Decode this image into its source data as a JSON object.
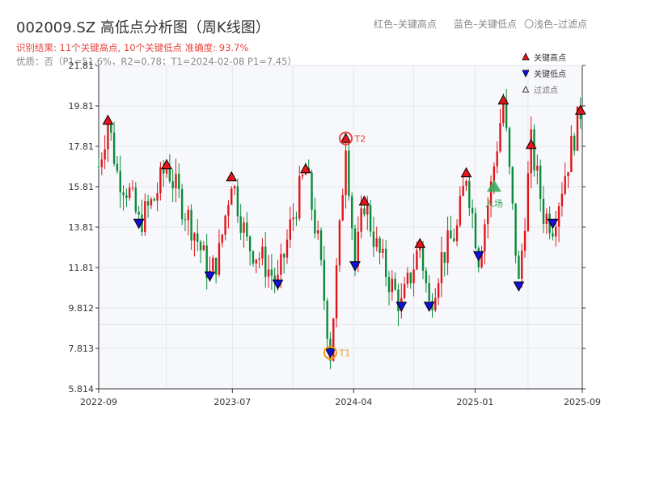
{
  "header": {
    "title": "002009.SZ 高低点分析图（周K线图）",
    "subtitle": "识别结果: 11个关键高点, 10个关键低点   准确度: 93.7%",
    "subtitle2": "优质：否（P1=51.6%，R2=0.78；T1=2024-02-08 P1=7.45）",
    "legend_top": [
      {
        "label": "红色–关键高点"
      },
      {
        "label": "蓝色–关键低点"
      },
      {
        "label": "〇浅色–过滤点"
      }
    ]
  },
  "colors": {
    "up": "#e0161b",
    "down": "#0a8a3a",
    "high_marker": "#e8161b",
    "low_marker": "#1010d8",
    "plot_bg": "#f7f8fb",
    "grid": "#e3e6ec",
    "axis": "#333333",
    "annotation_t1": "#f29418",
    "annotation_t2": "#e8453c",
    "entry": "#2daa57"
  },
  "chart_data": {
    "type": "candlestick",
    "x_axis": {
      "ticks": [
        {
          "label": "2022-09",
          "date": "2022-09-01"
        },
        {
          "label": "2023-07",
          "date": "2023-07-01"
        },
        {
          "label": "2024-04",
          "date": "2024-04-01"
        },
        {
          "label": "2025-01",
          "date": "2025-01-01"
        },
        {
          "label": "2025-09",
          "date": "2025-09-01"
        }
      ],
      "range": [
        "2022-09-01",
        "2025-09-01"
      ]
    },
    "y_axis": {
      "range": [
        5.814,
        21.81
      ],
      "ticks": [
        "5.814",
        "7.813",
        "9.812",
        "11.81",
        "13.81",
        "15.81",
        "17.81",
        "19.81",
        "21.81"
      ]
    },
    "price_path": [
      [
        "2022-09-01",
        16.8
      ],
      [
        "2022-09-22",
        19.1
      ],
      [
        "2022-10-13",
        16.5
      ],
      [
        "2022-11-10",
        15.5
      ],
      [
        "2022-12-01",
        14.0
      ],
      [
        "2023-01-05",
        15.2
      ],
      [
        "2023-02-02",
        16.9
      ],
      [
        "2023-03-02",
        15.3
      ],
      [
        "2023-04-06",
        13.6
      ],
      [
        "2023-05-11",
        11.4
      ],
      [
        "2023-06-01",
        12.5
      ],
      [
        "2023-06-29",
        16.3
      ],
      [
        "2023-08-03",
        13.0
      ],
      [
        "2023-09-07",
        12.2
      ],
      [
        "2023-10-12",
        11.0
      ],
      [
        "2023-11-09",
        13.8
      ],
      [
        "2023-12-14",
        16.7
      ],
      [
        "2024-01-11",
        13.0
      ],
      [
        "2024-02-08",
        7.6
      ],
      [
        "2024-02-29",
        13.5
      ],
      [
        "2024-03-14",
        18.2
      ],
      [
        "2024-04-04",
        11.9
      ],
      [
        "2024-04-25",
        15.1
      ],
      [
        "2024-05-23",
        12.8
      ],
      [
        "2024-06-20",
        11.2
      ],
      [
        "2024-07-18",
        9.9
      ],
      [
        "2024-08-29",
        13.0
      ],
      [
        "2024-09-19",
        9.9
      ],
      [
        "2024-10-17",
        12.3
      ],
      [
        "2024-11-21",
        13.7
      ],
      [
        "2024-12-12",
        16.5
      ],
      [
        "2025-01-09",
        12.4
      ],
      [
        "2025-02-06",
        15.8
      ],
      [
        "2025-03-06",
        20.1
      ],
      [
        "2025-04-10",
        10.9
      ],
      [
        "2025-05-08",
        17.9
      ],
      [
        "2025-06-05",
        14.5
      ],
      [
        "2025-06-26",
        14.0
      ],
      [
        "2025-07-24",
        16.5
      ],
      [
        "2025-08-28",
        19.6
      ]
    ],
    "key_highs": [
      {
        "date": "2022-09-22",
        "value": 19.1
      },
      {
        "date": "2023-02-02",
        "value": 16.9
      },
      {
        "date": "2023-06-29",
        "value": 16.3
      },
      {
        "date": "2023-12-14",
        "value": 16.7
      },
      {
        "date": "2024-03-14",
        "value": 18.2
      },
      {
        "date": "2024-04-25",
        "value": 15.1
      },
      {
        "date": "2024-08-29",
        "value": 13.0
      },
      {
        "date": "2024-12-12",
        "value": 16.5
      },
      {
        "date": "2025-03-06",
        "value": 20.1
      },
      {
        "date": "2025-05-08",
        "value": 17.9
      },
      {
        "date": "2025-08-28",
        "value": 19.6
      }
    ],
    "key_lows": [
      {
        "date": "2022-12-01",
        "value": 14.0
      },
      {
        "date": "2023-05-11",
        "value": 11.4
      },
      {
        "date": "2023-10-12",
        "value": 11.0
      },
      {
        "date": "2024-02-08",
        "value": 7.6
      },
      {
        "date": "2024-04-04",
        "value": 11.9
      },
      {
        "date": "2024-07-18",
        "value": 9.9
      },
      {
        "date": "2024-09-19",
        "value": 9.9
      },
      {
        "date": "2025-01-09",
        "value": 12.4
      },
      {
        "date": "2025-04-10",
        "value": 10.9
      },
      {
        "date": "2025-06-26",
        "value": 14.0
      }
    ],
    "annotations": [
      {
        "label": "T1",
        "date": "2024-02-08",
        "value": 7.6,
        "marker": "low"
      },
      {
        "label": "T2",
        "date": "2024-03-14",
        "value": 18.2,
        "marker": "high"
      }
    ],
    "entry": {
      "label": "入场",
      "date": "2025-02-13",
      "value": 15.8
    },
    "legend": {
      "position": "top-right",
      "items": [
        {
          "label": "关键高点",
          "kind": "high"
        },
        {
          "label": "关键低点",
          "kind": "low"
        },
        {
          "label": "过滤点",
          "kind": "filtered"
        }
      ]
    },
    "grid": true
  }
}
